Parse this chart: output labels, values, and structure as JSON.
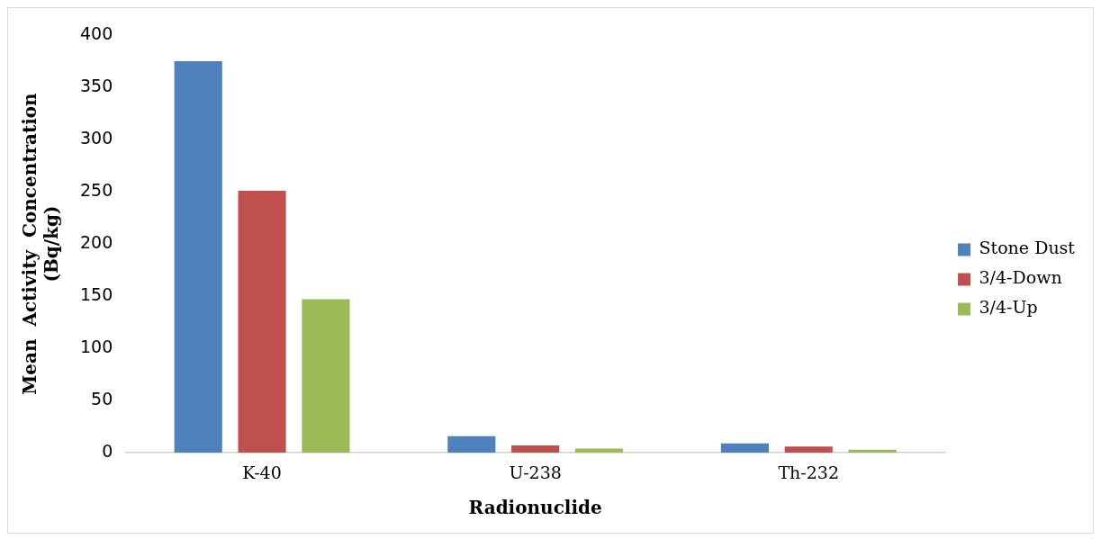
{
  "chart_data": {
    "type": "bar",
    "xlabel": "Radionuclide",
    "ylabel": "Mean  Activity  Concentration (Bq/kg)",
    "categories": [
      "K-40",
      "U-238",
      "Th-232"
    ],
    "series": [
      {
        "name": "Stone Dust",
        "color": "#4f81bd",
        "values": [
          375,
          16,
          9
        ]
      },
      {
        "name": "3/4-Down",
        "color": "#c0504d",
        "values": [
          251,
          7,
          6
        ]
      },
      {
        "name": "3/4-Up",
        "color": "#9bbb59",
        "values": [
          147,
          4,
          3
        ]
      }
    ],
    "ylim": [
      0,
      400
    ],
    "yticks": [
      0,
      50,
      100,
      150,
      200,
      250,
      300,
      350,
      400
    ],
    "grid": false,
    "legend": "right"
  }
}
